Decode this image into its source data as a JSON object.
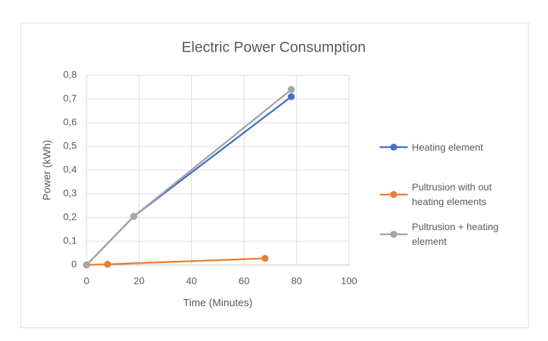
{
  "chart_data": {
    "type": "line",
    "title": "Electric Power Consumption",
    "x_label": "Time (Minutes)",
    "y_label": "Power (kWh)",
    "xlim": [
      0,
      100
    ],
    "xticks": [
      0,
      20,
      40,
      60,
      80,
      100
    ],
    "ylim": [
      0,
      0.8
    ],
    "yticks": [
      0,
      {
        "value": 0.1,
        "label": "0,1"
      },
      {
        "value": 0.2,
        "label": "0,2"
      },
      {
        "value": 0.3,
        "label": "0,3"
      },
      {
        "value": 0.4,
        "label": "0,4"
      },
      {
        "value": 0.5,
        "label": "0,5"
      },
      {
        "value": 0.6,
        "label": "0,6"
      },
      {
        "value": 0.7,
        "label": "0,7"
      },
      {
        "value": 0.8,
        "label": "0,8"
      }
    ],
    "grid": true,
    "legend_position": "right",
    "series": [
      {
        "name": "Heating element",
        "color": "#4472c4",
        "x": [
          0,
          18,
          78
        ],
        "values": [
          0,
          0.205,
          0.71
        ]
      },
      {
        "name": "Pultrusion with out heating elements",
        "color": "#ed7d31",
        "x": [
          0,
          8,
          68
        ],
        "values": [
          0,
          0.003,
          0.028
        ]
      },
      {
        "name": "Pultrusion + heating element",
        "color": "#a5a5a5",
        "x": [
          0,
          18,
          78
        ],
        "values": [
          0,
          0.205,
          0.74
        ]
      }
    ]
  }
}
